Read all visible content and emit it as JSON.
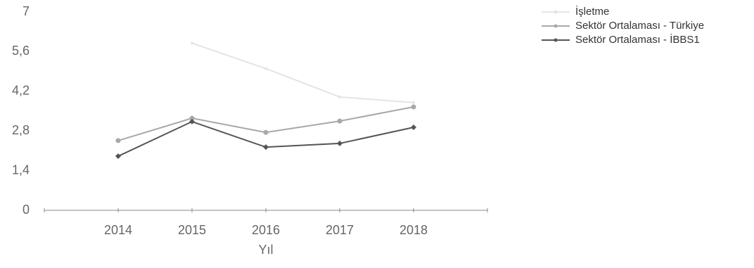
{
  "chart_data": {
    "type": "line",
    "x_label": "Yıl",
    "categories": [
      "2014",
      "2015",
      "2016",
      "2017",
      "2018"
    ],
    "series": [
      {
        "name": "İşletme",
        "color": "#e4e4e4",
        "values": [
          null,
          5.9,
          5.0,
          4.0,
          3.8
        ]
      },
      {
        "name": "Sektör Ortalaması - Türkiye",
        "color": "#a8a8a8",
        "values": [
          2.46,
          3.25,
          2.75,
          3.15,
          3.65
        ]
      },
      {
        "name": "Sektör Ortalaması - İBBS1",
        "color": "#555555",
        "values": [
          1.91,
          3.13,
          2.23,
          2.36,
          2.93
        ]
      }
    ],
    "ylim": [
      0,
      7
    ],
    "yticks": [
      0,
      {
        "value": 1.4,
        "label": "1,4"
      },
      {
        "value": 2.8,
        "label": "2,8"
      },
      {
        "value": 4.2,
        "label": "4,2"
      },
      {
        "value": 5.6,
        "label": "5,6"
      },
      7
    ],
    "grid": false,
    "legend": "top-right"
  }
}
